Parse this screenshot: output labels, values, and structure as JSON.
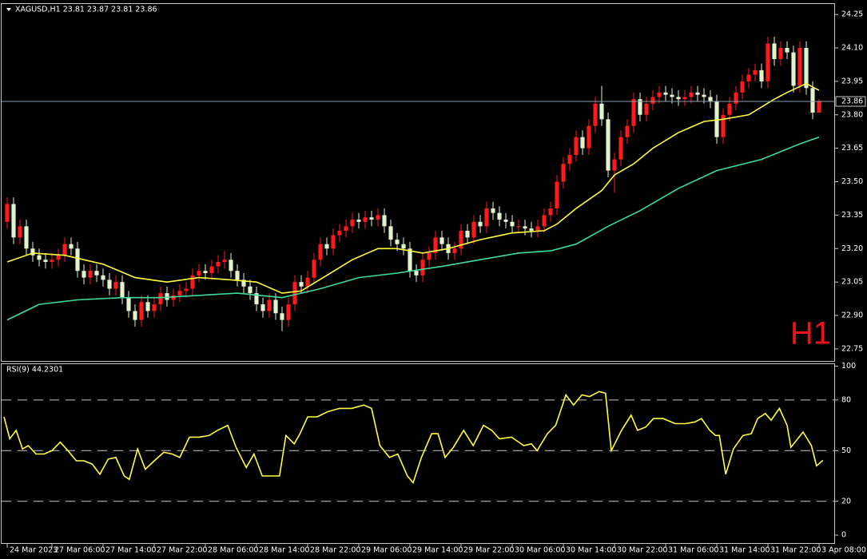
{
  "chart_data": [
    {
      "type": "candlestick",
      "title": "XAGUSD,H1  23.81 23.87 23.81 23.86",
      "annotation": "H1",
      "up_color": "#ff1a1a",
      "down_color": "#e2f4cc",
      "ohlc": [
        [
          23.32,
          23.43,
          23.29,
          23.4
        ],
        [
          23.4,
          23.43,
          23.22,
          23.25
        ],
        [
          23.25,
          23.33,
          23.22,
          23.3
        ],
        [
          23.3,
          23.33,
          23.17,
          23.2
        ],
        [
          23.2,
          23.23,
          23.14,
          23.17
        ],
        [
          23.17,
          23.2,
          23.12,
          23.15
        ],
        [
          23.15,
          23.18,
          23.11,
          23.14
        ],
        [
          23.14,
          23.18,
          23.11,
          23.15
        ],
        [
          23.15,
          23.2,
          23.12,
          23.17
        ],
        [
          23.17,
          23.25,
          23.14,
          23.22
        ],
        [
          23.22,
          23.25,
          23.17,
          23.2
        ],
        [
          23.2,
          23.23,
          23.07,
          23.1
        ],
        [
          23.1,
          23.13,
          23.04,
          23.07
        ],
        [
          23.07,
          23.13,
          23.04,
          23.1
        ],
        [
          23.1,
          23.13,
          23.05,
          23.08
        ],
        [
          23.08,
          23.11,
          23.03,
          23.06
        ],
        [
          23.06,
          23.09,
          22.99,
          23.02
        ],
        [
          23.02,
          23.08,
          22.99,
          23.05
        ],
        [
          23.05,
          23.08,
          22.95,
          22.98
        ],
        [
          22.98,
          23.01,
          22.89,
          22.92
        ],
        [
          22.92,
          22.95,
          22.85,
          22.88
        ],
        [
          22.88,
          22.99,
          22.85,
          22.96
        ],
        [
          22.96,
          22.99,
          22.89,
          22.92
        ],
        [
          22.92,
          22.98,
          22.89,
          22.95
        ],
        [
          22.95,
          23.03,
          22.92,
          23.0
        ],
        [
          23.0,
          23.03,
          22.94,
          22.97
        ],
        [
          22.97,
          23.02,
          22.94,
          22.99
        ],
        [
          22.99,
          23.04,
          22.96,
          23.01
        ],
        [
          23.01,
          23.05,
          22.98,
          23.02
        ],
        [
          23.02,
          23.11,
          22.99,
          23.08
        ],
        [
          23.08,
          23.13,
          23.05,
          23.1
        ],
        [
          23.1,
          23.13,
          23.06,
          23.09
        ],
        [
          23.09,
          23.15,
          23.06,
          23.12
        ],
        [
          23.12,
          23.17,
          23.09,
          23.14
        ],
        [
          23.14,
          23.19,
          23.11,
          23.15
        ],
        [
          23.15,
          23.18,
          23.07,
          23.1
        ],
        [
          23.1,
          23.13,
          23.03,
          23.06
        ],
        [
          23.06,
          23.09,
          23.0,
          23.03
        ],
        [
          23.03,
          23.06,
          22.97,
          23.0
        ],
        [
          23.0,
          23.03,
          22.92,
          22.95
        ],
        [
          22.95,
          22.98,
          22.89,
          22.92
        ],
        [
          22.92,
          23.0,
          22.89,
          22.97
        ],
        [
          22.97,
          23.0,
          22.88,
          22.91
        ],
        [
          22.91,
          22.94,
          22.83,
          22.88
        ],
        [
          22.88,
          22.98,
          22.85,
          22.95
        ],
        [
          22.95,
          23.08,
          22.92,
          23.05
        ],
        [
          23.05,
          23.08,
          23.0,
          23.03
        ],
        [
          23.03,
          23.1,
          23.0,
          23.07
        ],
        [
          23.07,
          23.18,
          23.04,
          23.15
        ],
        [
          23.15,
          23.25,
          23.12,
          23.22
        ],
        [
          23.22,
          23.25,
          23.17,
          23.2
        ],
        [
          23.2,
          23.29,
          23.17,
          23.26
        ],
        [
          23.26,
          23.31,
          23.23,
          23.28
        ],
        [
          23.28,
          23.33,
          23.25,
          23.3
        ],
        [
          23.3,
          23.36,
          23.27,
          23.33
        ],
        [
          23.33,
          23.36,
          23.29,
          23.32
        ],
        [
          23.32,
          23.37,
          23.29,
          23.34
        ],
        [
          23.34,
          23.37,
          23.3,
          23.33
        ],
        [
          23.33,
          23.38,
          23.3,
          23.35
        ],
        [
          23.35,
          23.38,
          23.27,
          23.3
        ],
        [
          23.3,
          23.33,
          23.21,
          23.24
        ],
        [
          23.24,
          23.27,
          23.19,
          23.22
        ],
        [
          23.22,
          23.25,
          23.17,
          23.2
        ],
        [
          23.2,
          23.23,
          23.07,
          23.1
        ],
        [
          23.1,
          23.13,
          23.05,
          23.08
        ],
        [
          23.08,
          23.18,
          23.05,
          23.15
        ],
        [
          23.15,
          23.21,
          23.12,
          23.18
        ],
        [
          23.18,
          23.28,
          23.15,
          23.25
        ],
        [
          23.25,
          23.28,
          23.19,
          23.22
        ],
        [
          23.22,
          23.25,
          23.15,
          23.18
        ],
        [
          23.18,
          23.23,
          23.15,
          23.2
        ],
        [
          23.2,
          23.31,
          23.17,
          23.28
        ],
        [
          23.28,
          23.31,
          23.22,
          23.25
        ],
        [
          23.25,
          23.35,
          23.22,
          23.32
        ],
        [
          23.32,
          23.35,
          23.27,
          23.3
        ],
        [
          23.3,
          23.41,
          23.27,
          23.38
        ],
        [
          23.38,
          23.41,
          23.33,
          23.36
        ],
        [
          23.36,
          23.39,
          23.3,
          23.33
        ],
        [
          23.33,
          23.36,
          23.29,
          23.32
        ],
        [
          23.32,
          23.35,
          23.27,
          23.3
        ],
        [
          23.3,
          23.33,
          23.27,
          23.3
        ],
        [
          23.3,
          23.33,
          23.26,
          23.29
        ],
        [
          23.29,
          23.32,
          23.25,
          23.28
        ],
        [
          23.28,
          23.33,
          23.25,
          23.3
        ],
        [
          23.3,
          23.38,
          23.27,
          23.35
        ],
        [
          23.35,
          23.41,
          23.32,
          23.38
        ],
        [
          23.38,
          23.53,
          23.35,
          23.5
        ],
        [
          23.5,
          23.61,
          23.47,
          23.58
        ],
        [
          23.58,
          23.65,
          23.55,
          23.62
        ],
        [
          23.62,
          23.73,
          23.59,
          23.7
        ],
        [
          23.7,
          23.73,
          23.62,
          23.65
        ],
        [
          23.65,
          23.78,
          23.62,
          23.75
        ],
        [
          23.75,
          23.88,
          23.72,
          23.85
        ],
        [
          23.85,
          23.93,
          23.75,
          23.78
        ],
        [
          23.78,
          23.81,
          23.52,
          23.55
        ],
        [
          23.55,
          23.63,
          23.45,
          23.6
        ],
        [
          23.6,
          23.73,
          23.57,
          23.7
        ],
        [
          23.7,
          23.78,
          23.67,
          23.75
        ],
        [
          23.75,
          23.9,
          23.72,
          23.87
        ],
        [
          23.87,
          23.9,
          23.77,
          23.8
        ],
        [
          23.8,
          23.88,
          23.77,
          23.85
        ],
        [
          23.85,
          23.91,
          23.82,
          23.88
        ],
        [
          23.88,
          23.93,
          23.85,
          23.9
        ],
        [
          23.9,
          23.93,
          23.86,
          23.89
        ],
        [
          23.89,
          23.92,
          23.85,
          23.88
        ],
        [
          23.88,
          23.91,
          23.84,
          23.87
        ],
        [
          23.87,
          23.91,
          23.84,
          23.88
        ],
        [
          23.88,
          23.93,
          23.85,
          23.9
        ],
        [
          23.9,
          23.93,
          23.86,
          23.89
        ],
        [
          23.89,
          23.92,
          23.85,
          23.88
        ],
        [
          23.88,
          23.91,
          23.83,
          23.86
        ],
        [
          23.86,
          23.89,
          23.67,
          23.7
        ],
        [
          23.7,
          23.83,
          23.67,
          23.8
        ],
        [
          23.8,
          23.88,
          23.77,
          23.85
        ],
        [
          23.85,
          23.93,
          23.82,
          23.9
        ],
        [
          23.9,
          23.98,
          23.87,
          23.95
        ],
        [
          23.95,
          24.01,
          23.92,
          23.98
        ],
        [
          23.98,
          24.03,
          23.95,
          24.0
        ],
        [
          24.0,
          24.03,
          23.92,
          23.95
        ],
        [
          23.95,
          24.15,
          23.92,
          24.12
        ],
        [
          24.12,
          24.15,
          24.02,
          24.05
        ],
        [
          24.05,
          24.13,
          24.02,
          24.1
        ],
        [
          24.1,
          24.13,
          24.05,
          24.08
        ],
        [
          24.08,
          24.11,
          23.9,
          23.93
        ],
        [
          23.93,
          24.13,
          23.9,
          24.1
        ],
        [
          24.1,
          24.13,
          23.89,
          23.92
        ],
        [
          23.92,
          23.95,
          23.78,
          23.81
        ],
        [
          23.81,
          23.87,
          23.81,
          23.86
        ]
      ],
      "overlays": [
        {
          "color": "#ffff3c",
          "x": [
            0,
            4,
            9,
            15,
            20,
            25,
            30,
            35,
            39,
            43,
            46,
            50,
            54,
            58,
            61,
            65,
            69,
            74,
            79,
            84,
            86,
            89,
            93,
            95,
            98,
            101,
            105,
            109,
            112,
            116,
            120,
            122,
            125,
            127
          ],
          "values": [
            23.14,
            23.18,
            23.17,
            23.13,
            23.07,
            23.05,
            23.07,
            23.06,
            23.05,
            23.0,
            23.01,
            23.08,
            23.15,
            23.2,
            23.2,
            23.18,
            23.2,
            23.24,
            23.27,
            23.28,
            23.31,
            23.38,
            23.46,
            23.53,
            23.58,
            23.65,
            23.72,
            23.77,
            23.78,
            23.8,
            23.87,
            23.9,
            23.94,
            23.91
          ]
        },
        {
          "color": "#3ddc9c",
          "x": [
            0,
            5,
            11,
            18,
            24,
            30,
            36,
            43,
            49,
            55,
            61,
            68,
            74,
            80,
            85,
            89,
            94,
            99,
            105,
            111,
            118,
            124,
            127
          ],
          "values": [
            22.88,
            22.95,
            22.97,
            22.98,
            22.98,
            22.99,
            23.0,
            22.98,
            23.02,
            23.07,
            23.09,
            23.12,
            23.15,
            23.18,
            23.19,
            23.22,
            23.3,
            23.37,
            23.47,
            23.55,
            23.6,
            23.67,
            23.7
          ]
        }
      ],
      "last_price": 23.86,
      "xlim": [
        -0.5,
        129.5
      ],
      "xticks": [
        {
          "value": 0,
          "label": "24 Mar 2023"
        },
        {
          "value": 7,
          "label": "27 Mar 06:00"
        },
        {
          "value": 15,
          "label": "27 Mar 14:00"
        },
        {
          "value": 23,
          "label": "27 Mar 22:00"
        },
        {
          "value": 31,
          "label": "28 Mar 06:00"
        },
        {
          "value": 39,
          "label": "28 Mar 14:00"
        },
        {
          "value": 47,
          "label": "28 Mar 22:00"
        },
        {
          "value": 55,
          "label": "29 Mar 06:00"
        },
        {
          "value": 63,
          "label": "29 Mar 14:00"
        },
        {
          "value": 71,
          "label": "29 Mar 22:00"
        },
        {
          "value": 79,
          "label": "30 Mar 06:00"
        },
        {
          "value": 87,
          "label": "30 Mar 14:00"
        },
        {
          "value": 95,
          "label": "30 Mar 22:00"
        },
        {
          "value": 103,
          "label": "31 Mar 06:00"
        },
        {
          "value": 111,
          "label": "31 Mar 14:00"
        },
        {
          "value": 119,
          "label": "31 Mar 22:00"
        },
        {
          "value": 127,
          "label": "3 Apr 08:00"
        }
      ],
      "ylim": [
        22.696,
        24.297
      ],
      "yticks": [
        24.25,
        {
          "value": 24.1,
          "label": "24.10"
        },
        23.95,
        {
          "value": 23.8,
          "label": "23.80"
        },
        23.65,
        {
          "value": 23.5,
          "label": "23.50"
        },
        23.35,
        {
          "value": 23.2,
          "label": "23.20"
        },
        23.05,
        {
          "value": 22.9,
          "label": "22.90"
        },
        22.75
      ]
    },
    {
      "type": "line",
      "title": "RSI(9) 44.2301",
      "color": "#ffff3c",
      "x": [
        -0.5,
        0.4,
        1.4,
        2.4,
        3.3,
        4.5,
        5.8,
        7,
        8.3,
        9.5,
        10.8,
        12,
        13.3,
        14.5,
        15.8,
        17,
        18.3,
        19.1,
        20.4,
        21.6,
        23.3,
        24.5,
        25.8,
        27,
        28.5,
        30.1,
        31.6,
        32.9,
        34.5,
        35.8,
        37.4,
        38.6,
        39.9,
        41.4,
        42.6,
        43.6,
        44.9,
        45.8,
        47,
        48.5,
        50.1,
        52,
        53.9,
        55.8,
        57,
        58.3,
        59.8,
        61.1,
        62.6,
        63.5,
        64.8,
        66.4,
        67.4,
        68.5,
        69.8,
        71.4,
        72.9,
        74.5,
        75.8,
        77,
        78.9,
        80.8,
        82,
        82.9,
        84.5,
        85.8,
        87.4,
        88.6,
        89.9,
        91.1,
        92.6,
        93.6,
        94.5,
        96.1,
        97.6,
        98.6,
        99.9,
        101.1,
        102.6,
        104.5,
        106.1,
        107.6,
        108.6,
        109.9,
        110.8,
        111.4,
        112.4,
        113.6,
        115.1,
        116.4,
        117.4,
        118.6,
        119.5,
        120.8,
        122,
        122.6,
        124.5,
        125.8,
        126.6,
        127.6
      ],
      "values": [
        70,
        57,
        62,
        51,
        53,
        48,
        48,
        50,
        55,
        50,
        44,
        44,
        42,
        36,
        45,
        46,
        35,
        33,
        51,
        39,
        45,
        49,
        48,
        46,
        58,
        58,
        59,
        62,
        65,
        52,
        40,
        48,
        35,
        35,
        35,
        59,
        54,
        60,
        70,
        70,
        73,
        75,
        75,
        77,
        75,
        53,
        46,
        48,
        35,
        31,
        46,
        60,
        60,
        46,
        52,
        62,
        53,
        65,
        62,
        57,
        58,
        53,
        54,
        50,
        60,
        65,
        83,
        77,
        83,
        82,
        85,
        84,
        50,
        62,
        71,
        62,
        64,
        69,
        69,
        66,
        66,
        67,
        69,
        62,
        59,
        59,
        36,
        51,
        59,
        60,
        69,
        72,
        68,
        75,
        65,
        52,
        61,
        53,
        41,
        44.2301
      ],
      "levels": [
        20,
        50,
        80
      ],
      "xlim": [
        -0.5,
        129.5
      ],
      "ylim": [
        -4.7,
        101.2
      ],
      "yticks": [
        0,
        20,
        50,
        80,
        100
      ]
    }
  ]
}
